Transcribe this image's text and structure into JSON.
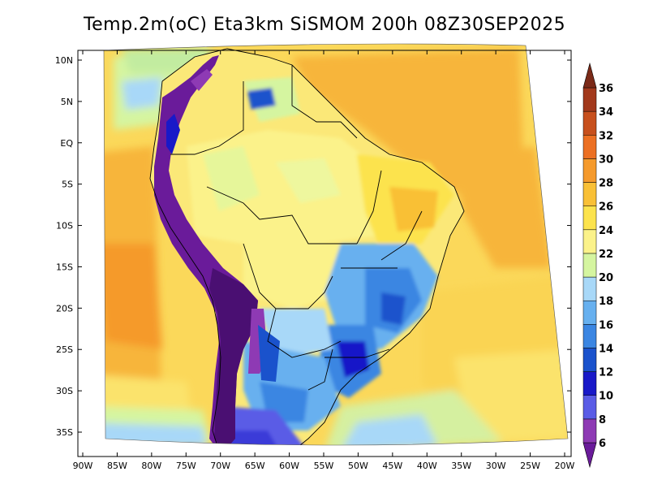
{
  "title": "Temp.2m(oC) Eta3km SiSMOM 200h 08Z30SEP2025",
  "map": {
    "lat_labels": [
      "10N",
      "5N",
      "EQ",
      "5S",
      "10S",
      "15S",
      "20S",
      "25S",
      "30S",
      "35S"
    ],
    "lon_labels": [
      "90W",
      "85W",
      "80W",
      "75W",
      "70W",
      "65W",
      "60W",
      "55W",
      "50W",
      "45W",
      "40W",
      "35W",
      "30W",
      "25W",
      "20W"
    ],
    "lat_values": [
      10,
      5,
      0,
      -5,
      -10,
      -15,
      -20,
      -25,
      -30,
      -35
    ],
    "lon_values": [
      -90,
      -85,
      -80,
      -75,
      -70,
      -65,
      -60,
      -55,
      -50,
      -45,
      -40,
      -35,
      -30,
      -25,
      -20
    ]
  },
  "colorbar": {
    "labels": [
      "6",
      "8",
      "10",
      "12",
      "14",
      "16",
      "18",
      "20",
      "22",
      "24",
      "26",
      "28",
      "30",
      "32",
      "34",
      "36"
    ],
    "colors": [
      "#6a1b9a",
      "#8e3ab4",
      "#5a5ce6",
      "#1919c8",
      "#1a52cc",
      "#3b86e2",
      "#67b0ef",
      "#a8d8f8",
      "#d5f5a0",
      "#fbf28a",
      "#fce34d",
      "#f9c036",
      "#f59a2c",
      "#ec7023",
      "#c7501d",
      "#a2391c",
      "#7b2a18"
    ]
  }
}
